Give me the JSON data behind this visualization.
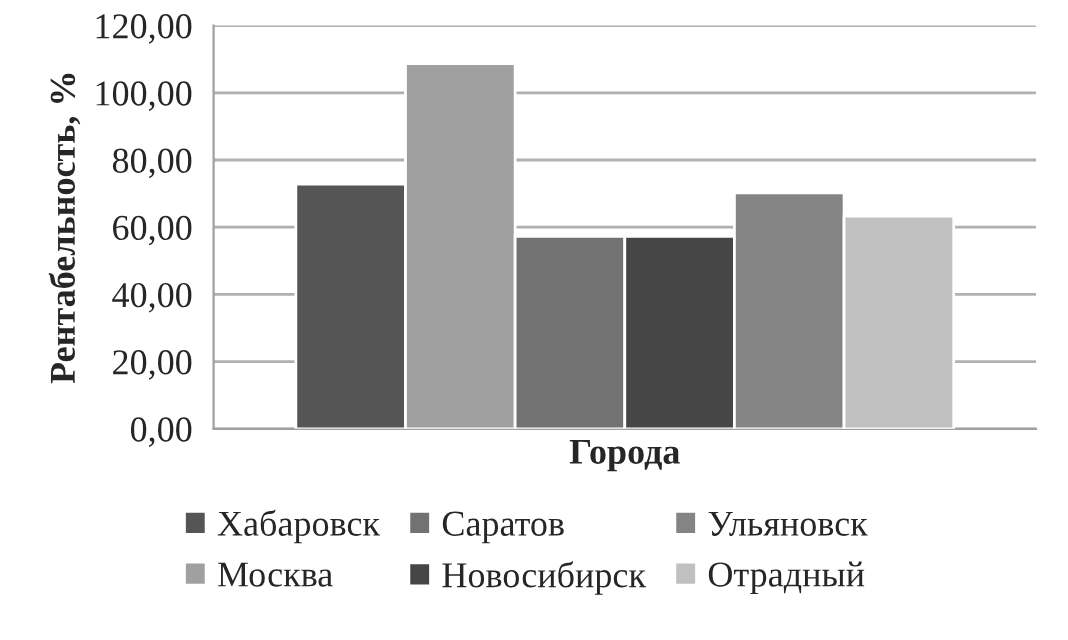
{
  "chart_data": {
    "type": "bar",
    "xlabel": "Города",
    "ylabel": "Рентабельность, %",
    "categories": [
      null
    ],
    "series": [
      {
        "name": "Хабаровск",
        "color": "#555555",
        "values": [
          72.8
        ]
      },
      {
        "name": "Москва",
        "color": "#a0a0a0",
        "values": [
          108.7
        ]
      },
      {
        "name": "Саратов",
        "color": "#727272",
        "values": [
          57.3
        ]
      },
      {
        "name": "Новосибирск",
        "color": "#464646",
        "values": [
          57.3
        ]
      },
      {
        "name": "Ульяновск",
        "color": "#848484",
        "values": [
          70.2
        ]
      },
      {
        "name": "Отрадный",
        "color": "#c0c0c0",
        "values": [
          63.3
        ]
      }
    ],
    "ylim": [
      0,
      120
    ],
    "yticks": [
      {
        "value": 0,
        "label": "0,00"
      },
      {
        "value": 20,
        "label": "20,00"
      },
      {
        "value": 40,
        "label": "40,00"
      },
      {
        "value": 60,
        "label": "60,00"
      },
      {
        "value": 80,
        "label": "80,00"
      },
      {
        "value": 100,
        "label": "100,00"
      },
      {
        "value": 120,
        "label": "120,00"
      }
    ],
    "grid": "y",
    "legend": "bottom"
  }
}
